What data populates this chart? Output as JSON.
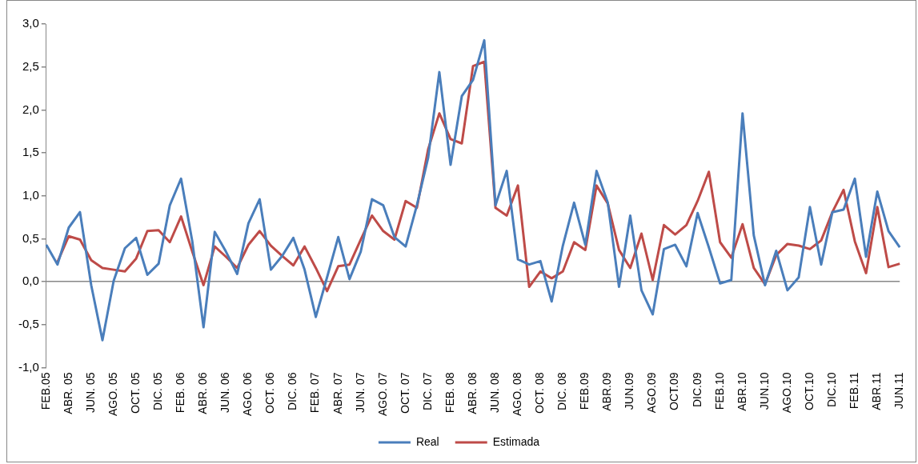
{
  "chart_data": {
    "type": "line",
    "categories": [
      "FEB.05",
      null,
      "ABR. 05",
      null,
      "JUN. 05",
      null,
      "AGO. 05",
      null,
      "OCT. 05",
      null,
      "DIC. 05",
      null,
      "FEB. 06",
      null,
      "ABR. 06",
      null,
      "JUN. 06",
      null,
      "AGO. 06",
      null,
      "OCT. 06",
      null,
      "DIC. 06",
      null,
      "FEB. 07",
      null,
      "ABR. 07",
      null,
      "JUN. 07",
      null,
      "AGO. 07",
      null,
      "OCT. 07",
      null,
      "DIC. 07",
      null,
      "FEB. 08",
      null,
      "ABR. 08",
      null,
      "JUN. 08",
      null,
      "AGO. 08",
      null,
      "OCT. 08",
      null,
      "DIC. 08",
      null,
      "FEB.09",
      null,
      "ABR.09",
      null,
      "JUN.09",
      null,
      "AGO.09",
      null,
      "OCT.09",
      null,
      "DIC.09",
      null,
      "FEB.10",
      null,
      "ABR.10",
      null,
      "JUN.10",
      null,
      "AGO.10",
      null,
      "OCT.10",
      null,
      "DIC.10",
      null,
      "FEB.11",
      null,
      "ABR.11",
      null,
      "JUN.11"
    ],
    "series": [
      {
        "name": "Real",
        "color": "#4a7ebb",
        "values": [
          0.43,
          0.2,
          0.63,
          0.81,
          -0.04,
          -0.68,
          0.01,
          0.39,
          0.51,
          0.08,
          0.21,
          0.89,
          1.2,
          0.47,
          -0.53,
          0.58,
          0.35,
          0.09,
          0.68,
          0.96,
          0.14,
          0.3,
          0.51,
          0.14,
          -0.41,
          0.05,
          0.52,
          0.03,
          0.35,
          0.96,
          0.89,
          0.52,
          0.41,
          0.89,
          1.44,
          2.44,
          1.36,
          2.16,
          2.35,
          2.81,
          0.89,
          1.29,
          0.26,
          0.2,
          0.24,
          -0.23,
          0.42,
          0.92,
          0.43,
          1.29,
          0.92,
          -0.06,
          0.77,
          -0.1,
          -0.38,
          0.38,
          0.43,
          0.18,
          0.8,
          0.4,
          -0.02,
          0.02,
          1.96,
          0.54,
          -0.04,
          0.36,
          -0.1,
          0.05,
          0.87,
          0.2,
          0.81,
          0.84,
          1.2,
          0.29,
          1.05,
          0.59,
          0.4
        ]
      },
      {
        "name": "Estimada",
        "color": "#be4b48",
        "values": [
          null,
          0.23,
          0.53,
          0.49,
          0.25,
          0.16,
          0.14,
          0.12,
          0.27,
          0.59,
          0.6,
          0.46,
          0.76,
          0.35,
          -0.04,
          0.41,
          0.29,
          0.16,
          0.43,
          0.59,
          0.42,
          0.3,
          0.19,
          0.41,
          0.16,
          -0.11,
          0.18,
          0.2,
          0.49,
          0.77,
          0.59,
          0.49,
          0.94,
          0.86,
          1.54,
          1.96,
          1.66,
          1.61,
          2.51,
          2.56,
          0.86,
          0.77,
          1.12,
          -0.06,
          0.12,
          0.04,
          0.12,
          0.46,
          0.37,
          1.12,
          0.91,
          0.37,
          0.16,
          0.56,
          0.02,
          0.66,
          0.55,
          0.66,
          0.94,
          1.28,
          0.46,
          0.28,
          0.67,
          0.16,
          -0.03,
          0.31,
          0.44,
          0.42,
          0.38,
          0.48,
          0.81,
          1.07,
          0.47,
          0.1,
          0.87,
          0.17,
          0.21
        ]
      }
    ],
    "ylim": [
      -1,
      3
    ],
    "yticks": [
      {
        "value": -1,
        "label": "-1,0"
      },
      {
        "value": -0.5,
        "label": "-0,5"
      },
      {
        "value": 0,
        "label": "0,0"
      },
      {
        "value": 0.5,
        "label": "0,5"
      },
      {
        "value": 1,
        "label": "1,0"
      },
      {
        "value": 1.5,
        "label": "1,5"
      },
      {
        "value": 2,
        "label": "2,0"
      },
      {
        "value": 2.5,
        "label": "2,5"
      },
      {
        "value": 3,
        "label": "3,0"
      }
    ],
    "legend": "bottom",
    "marker": "none",
    "line_style": "solid"
  }
}
